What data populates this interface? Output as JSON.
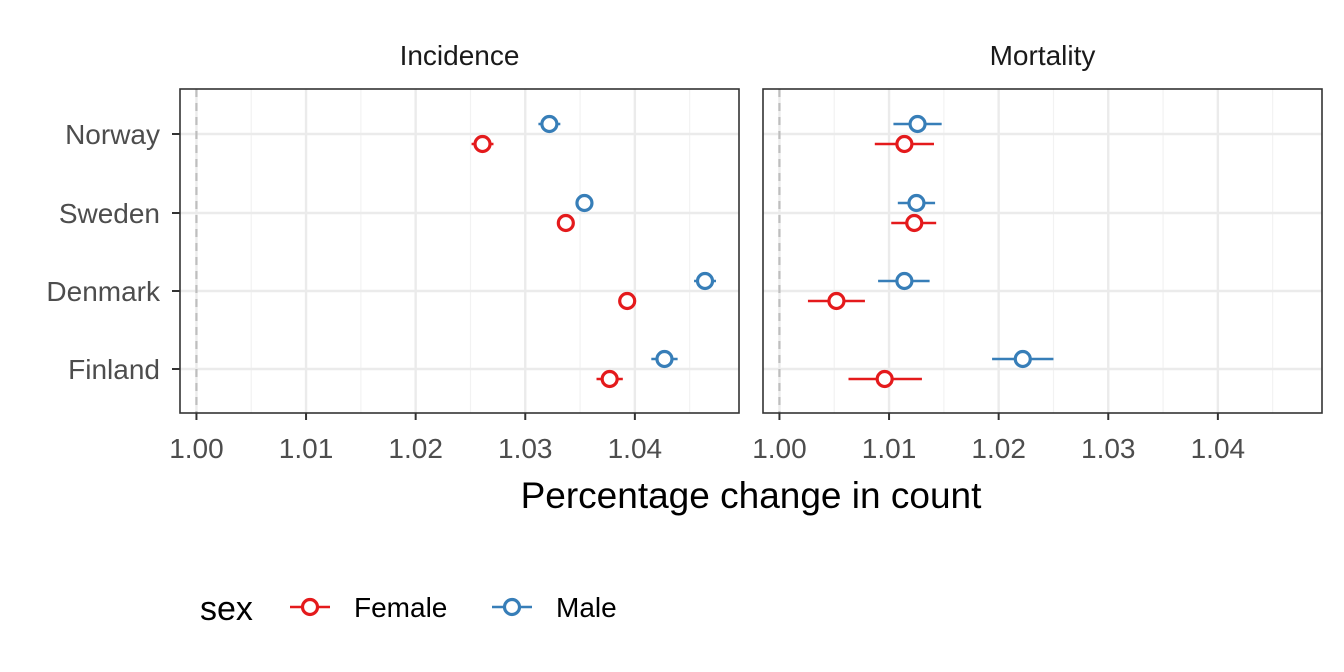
{
  "chart_data": {
    "type": "scatter",
    "subtype": "point-range",
    "xlabel": "Percentage change in count",
    "ylabel": "",
    "xlim": [
      0.9985,
      1.0495
    ],
    "x_ticks": [
      1.0,
      1.01,
      1.02,
      1.03,
      1.04
    ],
    "x_tick_labels": [
      "1.00",
      "1.01",
      "1.02",
      "1.03",
      "1.04"
    ],
    "reference_line": 1.0,
    "categories": [
      "Norway",
      "Sweden",
      "Denmark",
      "Finland"
    ],
    "grid": true,
    "legend": {
      "title": "sex",
      "position": "bottom",
      "entries": [
        {
          "name": "Female",
          "color": "#e41a1c"
        },
        {
          "name": "Male",
          "color": "#377eb8"
        }
      ]
    },
    "panels": [
      {
        "title": "Incidence",
        "series": [
          {
            "name": "Female",
            "points": [
              {
                "category": "Norway",
                "x": 1.0261,
                "low": 1.0251,
                "high": 1.0271
              },
              {
                "category": "Sweden",
                "x": 1.0337,
                "low": 1.0331,
                "high": 1.0343
              },
              {
                "category": "Denmark",
                "x": 1.0393,
                "low": 1.0385,
                "high": 1.0401
              },
              {
                "category": "Finland",
                "x": 1.0377,
                "low": 1.0365,
                "high": 1.0389
              }
            ]
          },
          {
            "name": "Male",
            "points": [
              {
                "category": "Norway",
                "x": 1.0322,
                "low": 1.0312,
                "high": 1.0332
              },
              {
                "category": "Sweden",
                "x": 1.0354,
                "low": 1.0349,
                "high": 1.0359
              },
              {
                "category": "Denmark",
                "x": 1.0464,
                "low": 1.0454,
                "high": 1.0474
              },
              {
                "category": "Finland",
                "x": 1.0427,
                "low": 1.0415,
                "high": 1.0439
              }
            ]
          }
        ]
      },
      {
        "title": "Mortality",
        "series": [
          {
            "name": "Female",
            "points": [
              {
                "category": "Norway",
                "x": 1.0114,
                "low": 1.0087,
                "high": 1.0141
              },
              {
                "category": "Sweden",
                "x": 1.0123,
                "low": 1.0102,
                "high": 1.0143
              },
              {
                "category": "Denmark",
                "x": 1.0052,
                "low": 1.0026,
                "high": 1.0078
              },
              {
                "category": "Finland",
                "x": 1.0096,
                "low": 1.0063,
                "high": 1.013
              }
            ]
          },
          {
            "name": "Male",
            "points": [
              {
                "category": "Norway",
                "x": 1.0126,
                "low": 1.0104,
                "high": 1.0148
              },
              {
                "category": "Sweden",
                "x": 1.0125,
                "low": 1.0108,
                "high": 1.0142
              },
              {
                "category": "Denmark",
                "x": 1.0114,
                "low": 1.009,
                "high": 1.0137
              },
              {
                "category": "Finland",
                "x": 1.0222,
                "low": 1.0194,
                "high": 1.025
              }
            ]
          }
        ]
      }
    ]
  }
}
